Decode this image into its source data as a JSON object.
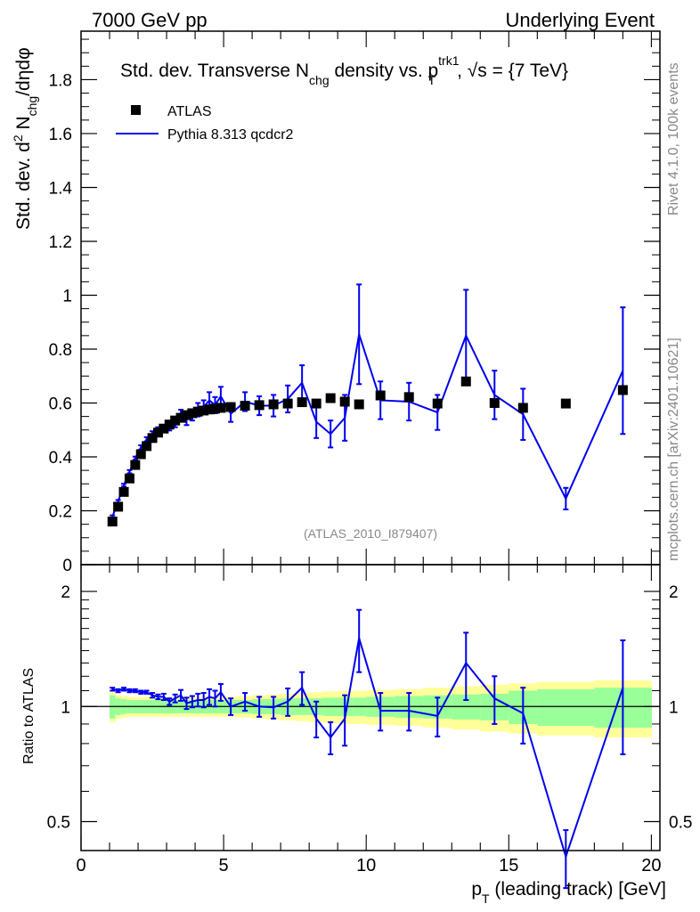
{
  "header": {
    "left": "7000 GeV pp",
    "right": "Underlying Event"
  },
  "side_labels": {
    "rivet": "Rivet 4.1.0,  100k events",
    "mcplots": "mcplots.cern.ch [arXiv:2401.10621]"
  },
  "watermark": "(ATLAS_2010_I879407)",
  "colors": {
    "data": "#000000",
    "mc": "#0000ee",
    "band_inner": "#99ff99",
    "band_outer": "#ffff99"
  },
  "chart_data": [
    {
      "type": "scatter",
      "panel": "main",
      "title": {
        "pre": "Std. dev. Transverse N",
        "sub_chg": "chg",
        "mid": " density vs. p",
        "sup": "trk1",
        "sub_T": "T",
        "post": ", √s = {7 TeV}"
      },
      "ylabel": {
        "pre": "Std. dev. d",
        "sup": "2",
        "mid": " N",
        "sub": "chg",
        "post": "/dηdφ"
      },
      "ylim": [
        0,
        1.98
      ],
      "xlim": [
        0,
        20.3
      ],
      "yticks": [
        "0",
        "0.2",
        "0.4",
        "0.6",
        "0.8",
        "1",
        "1.2",
        "1.4",
        "1.6",
        "1.8"
      ],
      "legend": {
        "placement": "top-left",
        "data_label": "ATLAS",
        "mc_label": "Pythia 8.313 qcdcr2"
      },
      "series": [
        {
          "name": "ATLAS",
          "style": "markers",
          "x": [
            1.1,
            1.3,
            1.5,
            1.7,
            1.9,
            2.1,
            2.3,
            2.5,
            2.7,
            2.9,
            3.1,
            3.3,
            3.5,
            3.7,
            3.9,
            4.1,
            4.3,
            4.5,
            4.7,
            4.9,
            5.25,
            5.75,
            6.25,
            6.75,
            7.25,
            7.75,
            8.25,
            8.75,
            9.25,
            9.75,
            10.5,
            11.5,
            12.5,
            13.5,
            14.5,
            15.5,
            17.0,
            19.0
          ],
          "y": [
            0.16,
            0.215,
            0.27,
            0.32,
            0.37,
            0.41,
            0.44,
            0.47,
            0.49,
            0.505,
            0.52,
            0.535,
            0.545,
            0.555,
            0.562,
            0.568,
            0.572,
            0.576,
            0.579,
            0.582,
            0.585,
            0.59,
            0.592,
            0.595,
            0.598,
            0.603,
            0.598,
            0.618,
            0.605,
            0.595,
            0.628,
            0.622,
            0.598,
            0.68,
            0.6,
            0.582,
            0.598,
            0.648
          ]
        },
        {
          "name": "Pythia 8.313 qcdcr2",
          "style": "line+errorbars",
          "x": [
            1.1,
            1.3,
            1.5,
            1.7,
            1.9,
            2.1,
            2.3,
            2.5,
            2.7,
            2.9,
            3.1,
            3.3,
            3.5,
            3.7,
            3.9,
            4.1,
            4.3,
            4.5,
            4.7,
            4.9,
            5.25,
            5.75,
            6.25,
            6.75,
            7.25,
            7.75,
            8.25,
            8.75,
            9.25,
            9.75,
            10.5,
            11.5,
            12.5,
            13.5,
            14.5,
            15.5,
            17.0,
            19.0
          ],
          "y": [
            0.178,
            0.235,
            0.295,
            0.345,
            0.395,
            0.435,
            0.465,
            0.485,
            0.5,
            0.505,
            0.51,
            0.525,
            0.555,
            0.538,
            0.555,
            0.575,
            0.585,
            0.61,
            0.592,
            0.625,
            0.56,
            0.605,
            0.59,
            0.59,
            0.615,
            0.675,
            0.53,
            0.485,
            0.545,
            0.855,
            0.61,
            0.605,
            0.565,
            0.85,
            0.63,
            0.558,
            0.245,
            0.72
          ],
          "err": [
            0.005,
            0.005,
            0.005,
            0.006,
            0.006,
            0.008,
            0.008,
            0.01,
            0.01,
            0.012,
            0.012,
            0.015,
            0.02,
            0.02,
            0.02,
            0.025,
            0.025,
            0.03,
            0.03,
            0.035,
            0.03,
            0.035,
            0.035,
            0.04,
            0.05,
            0.065,
            0.06,
            0.05,
            0.085,
            0.185,
            0.07,
            0.07,
            0.065,
            0.17,
            0.09,
            0.095,
            0.04,
            0.235
          ]
        }
      ]
    },
    {
      "type": "line",
      "panel": "ratio",
      "ylabel": "Ratio to ATLAS",
      "xlabel": {
        "pre": "p",
        "sub": "T",
        "post": " (leading track) [GeV]"
      },
      "ylim_log": [
        0.42,
        2.35
      ],
      "yticks": [
        "0.5",
        "1",
        "2"
      ],
      "xticks": [
        "0",
        "5",
        "10",
        "15",
        "20"
      ],
      "reference": 1.0,
      "bands": {
        "edges": [
          1.0,
          1.2,
          1.4,
          1.6,
          1.8,
          2.0,
          2.2,
          2.4,
          2.6,
          2.8,
          3.0,
          3.2,
          3.4,
          3.6,
          3.8,
          4.0,
          4.2,
          4.4,
          4.6,
          4.8,
          5.0,
          5.5,
          6.0,
          6.5,
          7.0,
          7.5,
          8.0,
          8.5,
          9.0,
          9.5,
          10.0,
          11.0,
          12.0,
          13.0,
          14.0,
          15.0,
          16.0,
          18.0,
          20.0
        ],
        "inner": [
          0.07,
          0.05,
          0.045,
          0.04,
          0.04,
          0.04,
          0.04,
          0.04,
          0.04,
          0.04,
          0.04,
          0.04,
          0.04,
          0.04,
          0.04,
          0.04,
          0.04,
          0.04,
          0.04,
          0.04,
          0.04,
          0.04,
          0.045,
          0.045,
          0.05,
          0.05,
          0.05,
          0.055,
          0.055,
          0.055,
          0.06,
          0.065,
          0.07,
          0.075,
          0.08,
          0.1,
          0.11,
          0.12
        ],
        "outer": [
          0.09,
          0.07,
          0.065,
          0.06,
          0.06,
          0.06,
          0.06,
          0.06,
          0.06,
          0.06,
          0.06,
          0.06,
          0.06,
          0.06,
          0.06,
          0.06,
          0.06,
          0.06,
          0.06,
          0.06,
          0.06,
          0.065,
          0.07,
          0.075,
          0.08,
          0.085,
          0.09,
          0.095,
          0.1,
          0.1,
          0.105,
          0.11,
          0.12,
          0.13,
          0.14,
          0.15,
          0.16,
          0.17
        ]
      },
      "series": [
        {
          "name": "Pythia 8.313 qcdcr2 / ATLAS",
          "x": [
            1.1,
            1.3,
            1.5,
            1.7,
            1.9,
            2.1,
            2.3,
            2.5,
            2.7,
            2.9,
            3.1,
            3.3,
            3.5,
            3.7,
            3.9,
            4.1,
            4.3,
            4.5,
            4.7,
            4.9,
            5.25,
            5.75,
            6.25,
            6.75,
            7.25,
            7.75,
            8.25,
            8.75,
            9.25,
            9.75,
            10.5,
            11.5,
            12.5,
            13.5,
            14.5,
            15.5,
            17.0,
            19.0
          ],
          "y": [
            1.11,
            1.1,
            1.11,
            1.1,
            1.1,
            1.09,
            1.09,
            1.07,
            1.06,
            1.06,
            1.03,
            1.05,
            1.07,
            1.02,
            1.03,
            1.04,
            1.04,
            1.06,
            1.05,
            1.09,
            1.0,
            1.03,
            1.0,
            0.995,
            1.03,
            1.12,
            0.93,
            0.83,
            0.93,
            1.51,
            0.975,
            0.975,
            0.945,
            1.3,
            1.05,
            0.96,
            0.405,
            1.12
          ],
          "err": [
            0.01,
            0.01,
            0.01,
            0.01,
            0.01,
            0.01,
            0.01,
            0.015,
            0.015,
            0.02,
            0.02,
            0.025,
            0.035,
            0.035,
            0.035,
            0.04,
            0.045,
            0.05,
            0.05,
            0.055,
            0.05,
            0.055,
            0.06,
            0.065,
            0.085,
            0.11,
            0.1,
            0.08,
            0.14,
            0.28,
            0.11,
            0.11,
            0.11,
            0.26,
            0.15,
            0.16,
            0.07,
            0.37
          ]
        }
      ]
    }
  ]
}
